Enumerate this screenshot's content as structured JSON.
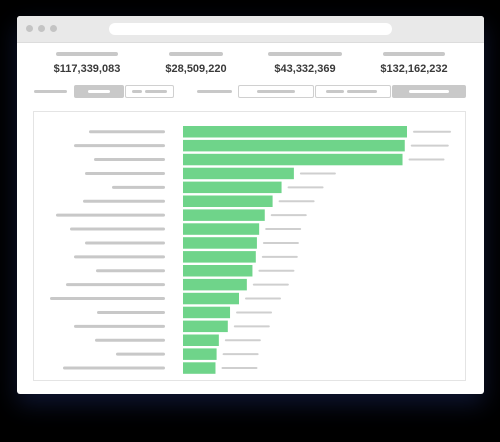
{
  "colors": {
    "background": "#000000",
    "window": "#ffffff",
    "titlebar": "#e9e9e9",
    "placeholder": "#c8c8c8",
    "bar": "#6fd48a",
    "selected_segment": "#c9c9c9"
  },
  "stats": [
    {
      "value": "$117,339,083"
    },
    {
      "value": "$28,509,220"
    },
    {
      "value": "$43,332,369"
    },
    {
      "value": "$132,162,232"
    }
  ],
  "chart_data": {
    "type": "bar",
    "orientation": "horizontal",
    "title": "",
    "xlabel": "",
    "ylabel": "",
    "categories": [
      "",
      "",
      "",
      "",
      "",
      "",
      "",
      "",
      "",
      "",
      "",
      "",
      "",
      "",
      "",
      "",
      "",
      ""
    ],
    "values": [
      100,
      99,
      98,
      49.5,
      44,
      40,
      36.5,
      34,
      33,
      32.5,
      31,
      28.5,
      25,
      21,
      20,
      16,
      15,
      14.5
    ],
    "xlim": [
      0,
      100
    ],
    "grid": false,
    "legend": "none"
  }
}
